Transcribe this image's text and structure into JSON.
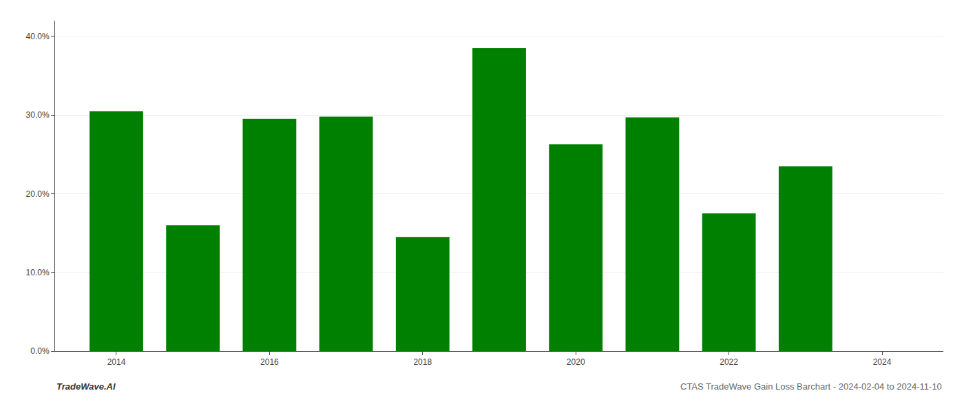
{
  "chart_data": {
    "type": "bar",
    "x": [
      2014,
      2015,
      2016,
      2017,
      2018,
      2019,
      2020,
      2021,
      2022,
      2023
    ],
    "values": [
      0.305,
      0.16,
      0.295,
      0.298,
      0.145,
      0.385,
      0.263,
      0.297,
      0.175,
      0.235
    ],
    "color": "#008000",
    "xlim": [
      2013.2,
      2024.8
    ],
    "xticks": [
      2014,
      2016,
      2018,
      2020,
      2022,
      2024
    ],
    "ylim": [
      0,
      0.42
    ],
    "yticks": [
      {
        "value": 0.0,
        "label": "0.0%"
      },
      {
        "value": 0.1,
        "label": "10.0%"
      },
      {
        "value": 0.2,
        "label": "20.0%"
      },
      {
        "value": 0.3,
        "label": "30.0%"
      },
      {
        "value": 0.4,
        "label": "40.0%"
      }
    ],
    "grid": true,
    "annotations": [
      "TradeWave.AI",
      "CTAS TradeWave Gain Loss Barchart - 2024-02-04 to 2024-11-10"
    ]
  }
}
